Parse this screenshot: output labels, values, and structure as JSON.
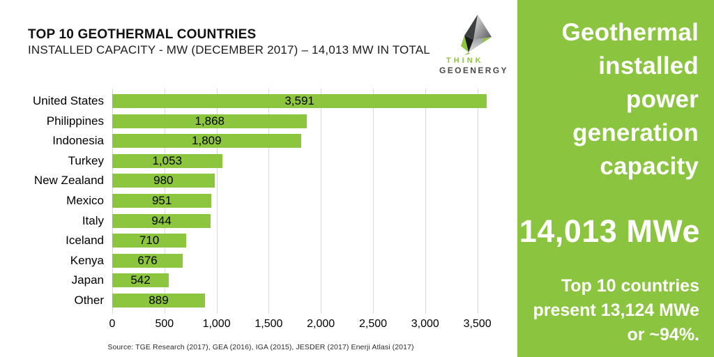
{
  "header": {
    "title": "TOP 10 GEOTHERMAL COUNTRIES",
    "subtitle": "INSTALLED CAPACITY - MW (DECEMBER 2017) – 14,013 MW IN TOTAL"
  },
  "logo": {
    "line1": "THINK",
    "line2": "GEOENERGY",
    "green": "#8dc63f",
    "dark": "#4a4a4c"
  },
  "chart_data": {
    "type": "bar",
    "orientation": "horizontal",
    "title": "TOP 10 GEOTHERMAL COUNTRIES",
    "subtitle": "INSTALLED CAPACITY - MW (DECEMBER 2017) – 14,013 MW IN TOTAL",
    "categories": [
      "United States",
      "Philippines",
      "Indonesia",
      "Turkey",
      "New Zealand",
      "Mexico",
      "Italy",
      "Iceland",
      "Kenya",
      "Japan",
      "Other"
    ],
    "values": [
      3591,
      1868,
      1809,
      1053,
      980,
      951,
      944,
      710,
      676,
      542,
      889
    ],
    "value_labels": [
      "3,591",
      "1,868",
      "1,809",
      "1,053",
      "980",
      "951",
      "944",
      "710",
      "676",
      "542",
      "889"
    ],
    "xlabel": "",
    "ylabel": "",
    "xlim": [
      0,
      3660
    ],
    "xticks": [
      0,
      500,
      1000,
      1500,
      2000,
      2500,
      3000,
      3500
    ],
    "xtick_labels": [
      "0",
      "500",
      "1,000",
      "1,500",
      "2,000",
      "2,500",
      "3,000",
      "3,500"
    ],
    "grid": "vertical-light-gray",
    "legend": "none",
    "bar_color": "#8cc63f",
    "gridline_color": "#d9d9d9",
    "value_label_position": "centered-inside-bar"
  },
  "source": "Source: TGE Research (2017), GEA (2016), IGA (2015), JESDER (2017) Enerji Atlasi (2017)",
  "panel": {
    "heading": "Geothermal installed power generation capacity",
    "big_value": "14,013 MWe",
    "note": "Top 10 countries present 13,124 MWe or ~94%.",
    "bg": "#8bc43e"
  }
}
